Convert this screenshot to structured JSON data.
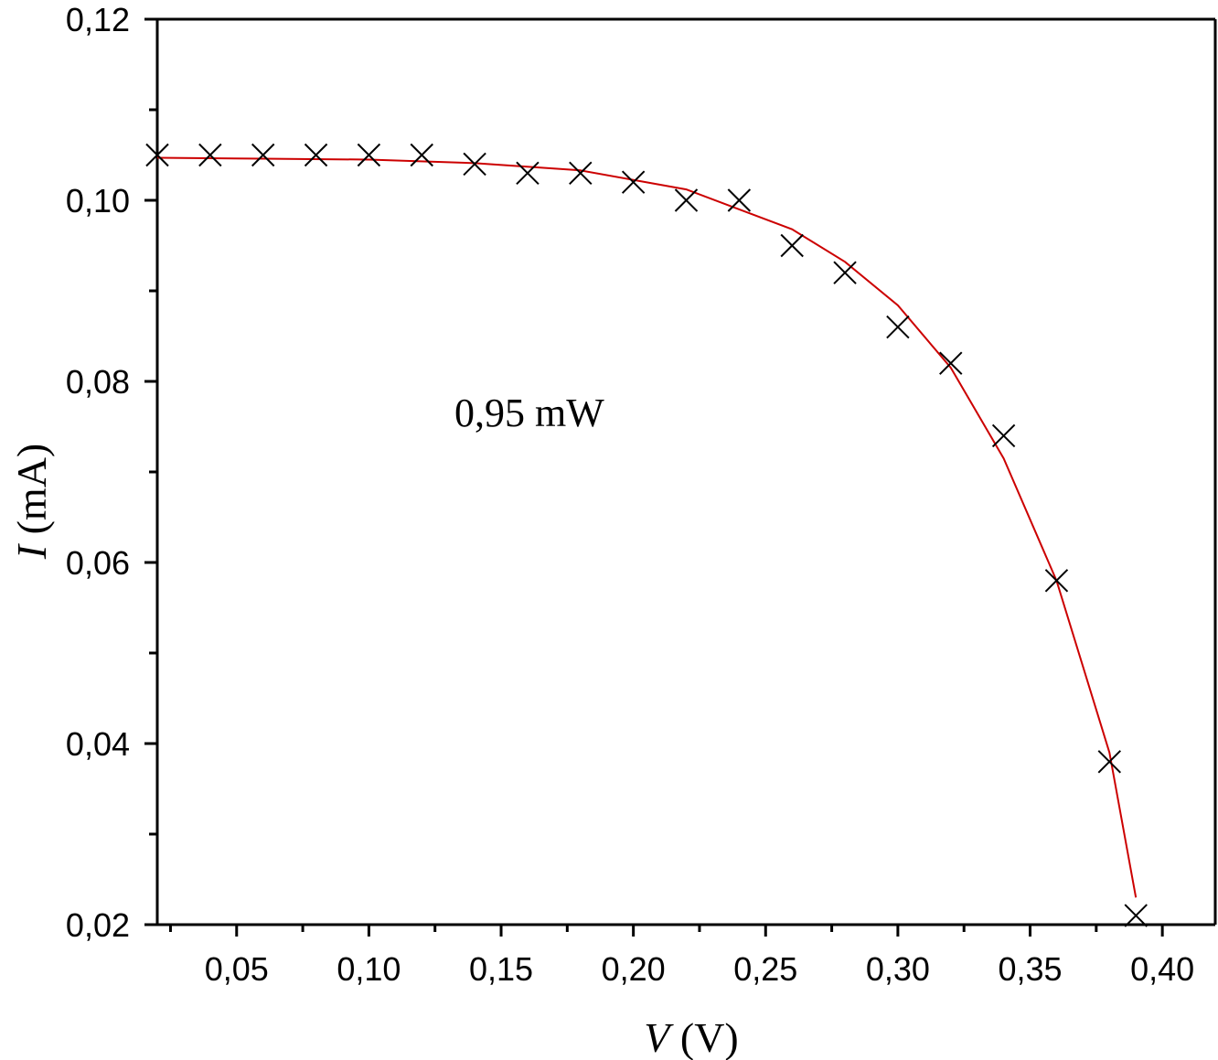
{
  "chart_data": {
    "type": "scatter",
    "xlabel": {
      "var": "V",
      "unit": " (V)"
    },
    "ylabel": {
      "var": "I",
      "unit": " (mA)"
    },
    "annotation": "0,95 mW",
    "xlim": [
      0.02,
      0.42
    ],
    "ylim": [
      0.02,
      0.12
    ],
    "x_ticks": [
      "0,05",
      "0,10",
      "0,15",
      "0,20",
      "0,25",
      "0,30",
      "0,35",
      "0,40"
    ],
    "x_tick_values": [
      0.05,
      0.1,
      0.15,
      0.2,
      0.25,
      0.3,
      0.35,
      0.4
    ],
    "y_ticks": [
      "0,02",
      "0,04",
      "0,06",
      "0,08",
      "0,10",
      "0,12"
    ],
    "y_tick_values": [
      0.02,
      0.04,
      0.06,
      0.08,
      0.1,
      0.12
    ],
    "grid": false,
    "series": [
      {
        "marker": "x",
        "color": "#000000",
        "x": [
          0.02,
          0.04,
          0.06,
          0.08,
          0.1,
          0.12,
          0.14,
          0.16,
          0.18,
          0.2,
          0.22,
          0.24,
          0.26,
          0.28,
          0.3,
          0.32,
          0.34,
          0.36,
          0.38,
          0.39
        ],
        "y": [
          0.105,
          0.105,
          0.105,
          0.105,
          0.105,
          0.105,
          0.104,
          0.103,
          0.103,
          0.102,
          0.1,
          0.1,
          0.095,
          0.092,
          0.086,
          0.082,
          0.074,
          0.058,
          0.038,
          0.021
        ]
      },
      {
        "marker": "line",
        "color": "#cc0000",
        "x": [
          0.02,
          0.06,
          0.1,
          0.14,
          0.18,
          0.22,
          0.24,
          0.26,
          0.28,
          0.3,
          0.32,
          0.34,
          0.36,
          0.38,
          0.39
        ],
        "y": [
          0.1047,
          0.1046,
          0.1045,
          0.1041,
          0.1033,
          0.1012,
          0.099,
          0.0968,
          0.0932,
          0.0884,
          0.0815,
          0.0715,
          0.058,
          0.039,
          0.023
        ]
      }
    ]
  }
}
